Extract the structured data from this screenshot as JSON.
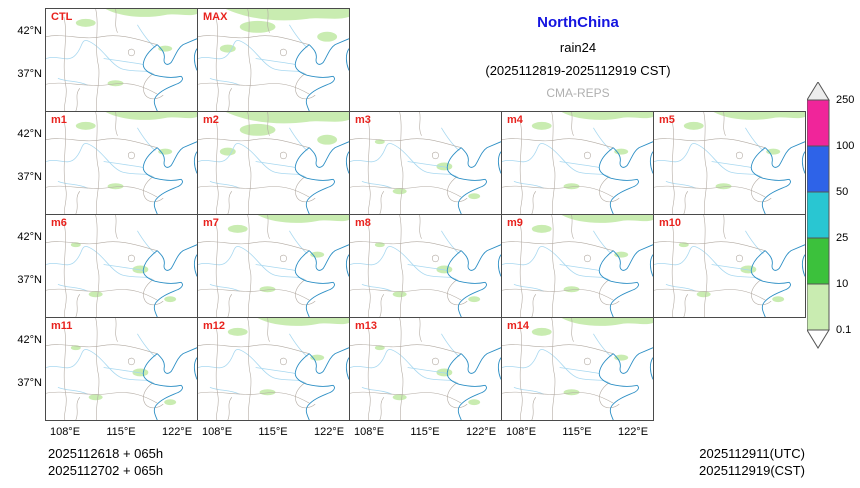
{
  "title": {
    "model": "NorthChina",
    "variable": "rain24",
    "period": "(2025112819-2025112919 CST)",
    "system": "CMA-REPS",
    "model_color": "#1414e0",
    "system_color": "#b0b0b0"
  },
  "axis": {
    "lat_labels": [
      "42°N",
      "37°N"
    ],
    "lon_labels": [
      "108°E",
      "115°E",
      "122°E"
    ]
  },
  "panel_label_color": "#e8221e",
  "panels": [
    {
      "label": "CTL",
      "row": 0,
      "col": 0,
      "shading": "medium"
    },
    {
      "label": "MAX",
      "row": 0,
      "col": 1,
      "shading": "heavy"
    },
    {
      "label": "m1",
      "row": 1,
      "col": 0,
      "shading": "medium"
    },
    {
      "label": "m2",
      "row": 1,
      "col": 1,
      "shading": "heavy"
    },
    {
      "label": "m3",
      "row": 1,
      "col": 2,
      "shading": "light"
    },
    {
      "label": "m4",
      "row": 1,
      "col": 3,
      "shading": "medium"
    },
    {
      "label": "m5",
      "row": 1,
      "col": 4,
      "shading": "medium"
    },
    {
      "label": "m6",
      "row": 2,
      "col": 0,
      "shading": "light"
    },
    {
      "label": "m7",
      "row": 2,
      "col": 1,
      "shading": "medium"
    },
    {
      "label": "m8",
      "row": 2,
      "col": 2,
      "shading": "light"
    },
    {
      "label": "m9",
      "row": 2,
      "col": 3,
      "shading": "medium"
    },
    {
      "label": "m10",
      "row": 2,
      "col": 4,
      "shading": "light"
    },
    {
      "label": "m11",
      "row": 3,
      "col": 0,
      "shading": "light"
    },
    {
      "label": "m12",
      "row": 3,
      "col": 1,
      "shading": "medium"
    },
    {
      "label": "m13",
      "row": 3,
      "col": 2,
      "shading": "light"
    },
    {
      "label": "m14",
      "row": 3,
      "col": 3,
      "shading": "medium"
    }
  ],
  "colorbar": {
    "levels": [
      "250",
      "100",
      "50",
      "25",
      "10",
      "0.1"
    ],
    "colors": [
      "#f0259a",
      "#2e63e8",
      "#29c6d2",
      "#3cc13c",
      "#c9ecb1"
    ],
    "top_arrow_color": "#ededed",
    "bottom_arrow_color": "#ffffff"
  },
  "footer": {
    "init_line1": "2025112618 + 065h",
    "init_line2": "2025112702 + 065h",
    "valid_utc": "2025112911(UTC)",
    "valid_cst": "2025112919(CST)"
  },
  "chart_data": {
    "type": "heatmap",
    "title": "NorthChina rain24 (2025112819-2025112919 CST)",
    "subtitle": "CMA-REPS",
    "description_visible": "16-panel ensemble 24h rainfall maps",
    "panels": [
      "CTL",
      "MAX",
      "m1",
      "m2",
      "m3",
      "m4",
      "m5",
      "m6",
      "m7",
      "m8",
      "m9",
      "m10",
      "m11",
      "m12",
      "m13",
      "m14"
    ],
    "x_ticks": [
      "108°E",
      "115°E",
      "122°E"
    ],
    "y_ticks": [
      "42°N",
      "37°N"
    ],
    "colorbar_levels": [
      0.1,
      10,
      25,
      50,
      100,
      250
    ],
    "colorbar_colors": [
      "#c9ecb1",
      "#3cc13c",
      "#29c6d2",
      "#2e63e8",
      "#f0259a"
    ],
    "legend_position": "right"
  }
}
